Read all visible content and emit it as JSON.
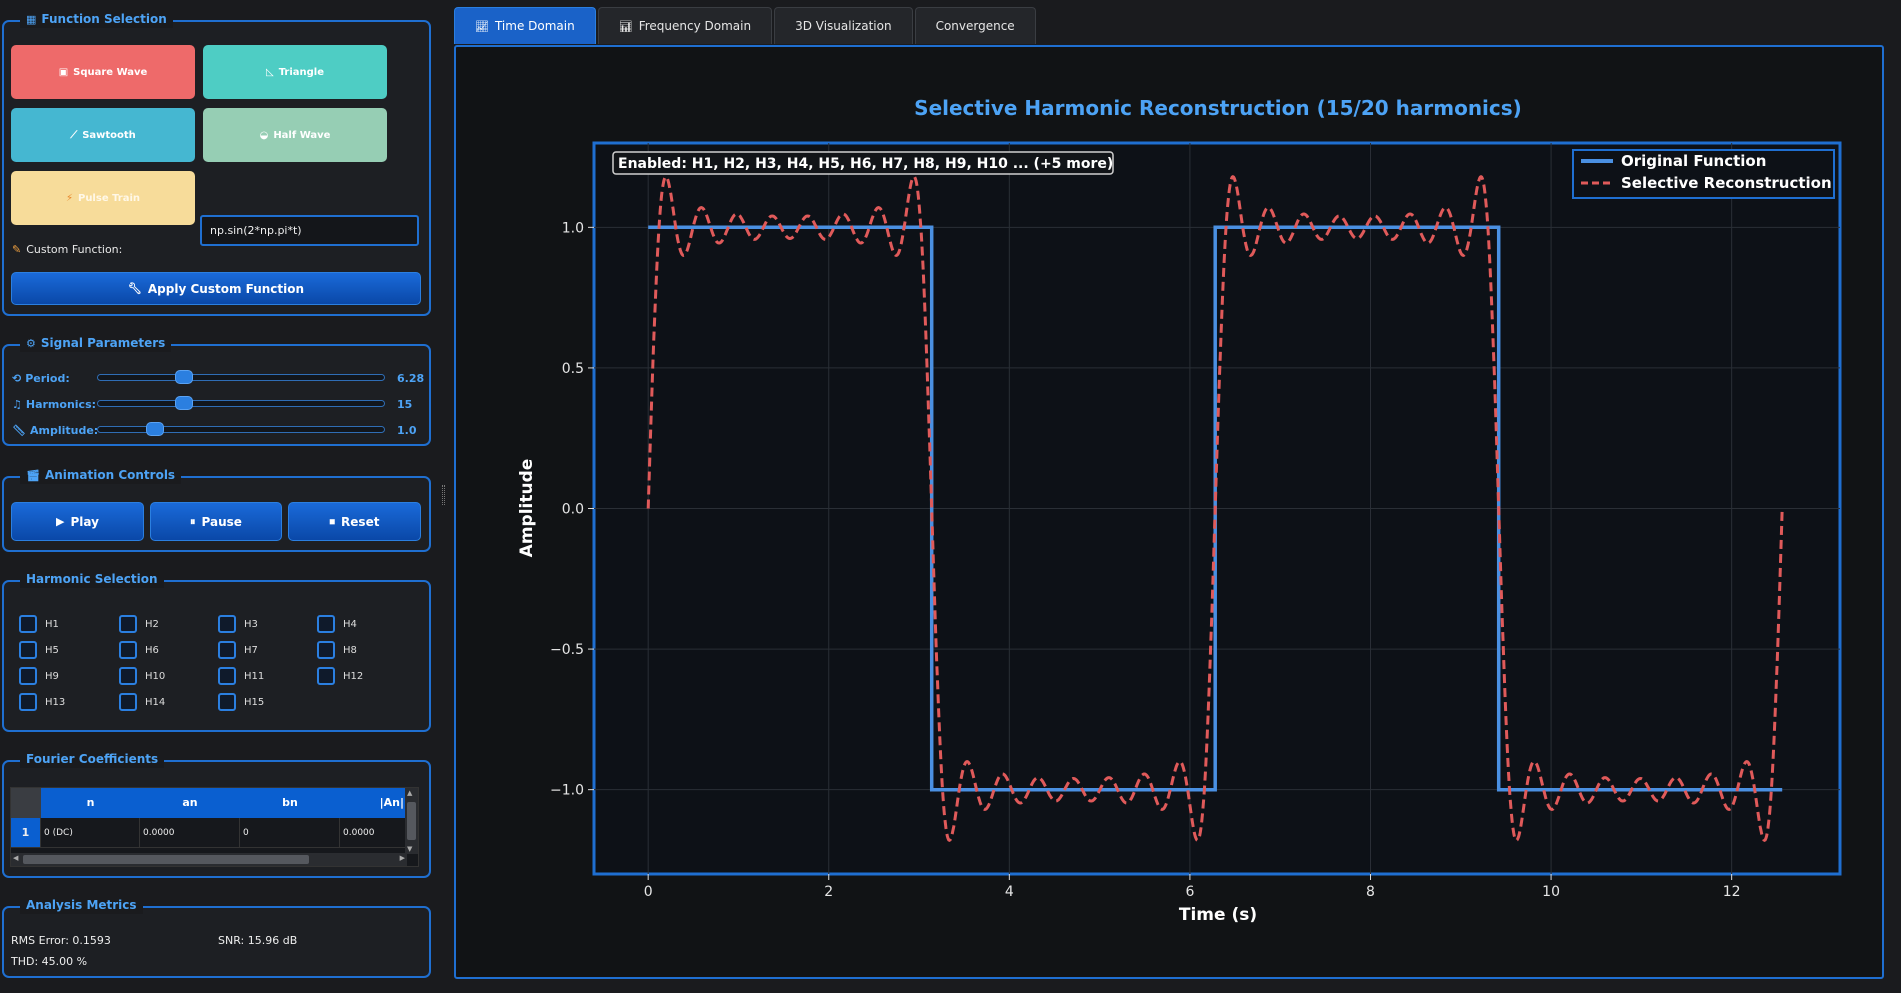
{
  "function_selection": {
    "title": "Function Selection",
    "title_icon": "chart-icon",
    "buttons": [
      {
        "label": "Square Wave",
        "icon": "square-wave-icon",
        "color": "#ee6a6a"
      },
      {
        "label": "Triangle",
        "icon": "triangle-ruler-icon",
        "color": "#4ecdc4"
      },
      {
        "label": "Sawtooth",
        "icon": "saw-icon",
        "color": "#45b7d1"
      },
      {
        "label": "Half Wave",
        "icon": "half-wave-icon",
        "color": "#96ceb4"
      },
      {
        "label": "Pulse Train",
        "icon": "lightning-icon",
        "color": "#f7dc9a"
      }
    ],
    "custom_label": "Custom Function:",
    "custom_value": "np.sin(2*np.pi*t)",
    "apply_label": "Apply Custom Function"
  },
  "signal_parameters": {
    "title": "Signal Parameters",
    "sliders": [
      {
        "label": "Period:",
        "value_text": "6.28",
        "fraction": 0.3
      },
      {
        "label": "Harmonics:",
        "value_text": "15",
        "fraction": 0.3
      },
      {
        "label": "Amplitude:",
        "value_text": "1.0",
        "fraction": 0.2
      }
    ]
  },
  "animation_controls": {
    "title": "Animation Controls",
    "play_label": "Play",
    "pause_label": "Pause",
    "reset_label": "Reset"
  },
  "harmonic_selection": {
    "title": "Harmonic Selection",
    "items": [
      "H1",
      "H2",
      "H3",
      "H4",
      "H5",
      "H6",
      "H7",
      "H8",
      "H9",
      "H10",
      "H11",
      "H12",
      "H13",
      "H14",
      "H15"
    ]
  },
  "fourier_coefficients": {
    "title": "Fourier Coefficients",
    "columns": [
      "n",
      "an",
      "bn",
      "|An|"
    ],
    "rows": [
      {
        "index": "1",
        "cells": [
          "0 (DC)",
          "0.0000",
          "0",
          "0.0000"
        ]
      }
    ]
  },
  "analysis_metrics": {
    "title": "Analysis Metrics",
    "rms": "RMS Error: 0.1593",
    "snr": "SNR: 15.96 dB",
    "thd": "THD: 45.00 %"
  },
  "tabs": [
    {
      "label": "Time Domain",
      "icon": "line-chart-icon",
      "active": true
    },
    {
      "label": "Frequency Domain",
      "icon": "bar-chart-icon",
      "active": false
    },
    {
      "label": "3D Visualization",
      "icon": "",
      "active": false
    },
    {
      "label": "Convergence",
      "icon": "",
      "active": false
    }
  ],
  "chart_data": {
    "type": "line",
    "title": "Selective Harmonic Reconstruction (15/20 harmonics)",
    "xlabel": "Time (s)",
    "ylabel": "Amplitude",
    "xlim": [
      -0.6,
      13.2
    ],
    "ylim": [
      -1.3,
      1.3
    ],
    "xticks": [
      0,
      2,
      4,
      6,
      8,
      10,
      12
    ],
    "xtick_labels": [
      "0",
      "2",
      "4",
      "6",
      "8",
      "10",
      "12"
    ],
    "yticks": [
      1.0,
      0.5,
      0.0,
      -0.5,
      -1.0
    ],
    "ytick_labels": [
      "1.0",
      "0.5",
      "0.0",
      "−0.5",
      "−1.0"
    ],
    "annotation": "Enabled: H1, H2, H3, H4, H5, H6, H7, H8, H9, H10 ... (+5 more)",
    "grid": true,
    "legend_position": "top-right",
    "series": [
      {
        "name": "Original Function",
        "style": "solid",
        "color": "#4a90e2",
        "function": "square",
        "period": 6.28,
        "t_range": [
          0,
          12.56
        ],
        "amplitude": 1.0
      },
      {
        "name": "Selective Reconstruction",
        "style": "dashed",
        "color": "#e05a5a",
        "function": "fourier-square",
        "harmonics_enabled": 15,
        "period": 6.28,
        "t_range": [
          0,
          12.56
        ],
        "amplitude": 1.0
      }
    ]
  }
}
